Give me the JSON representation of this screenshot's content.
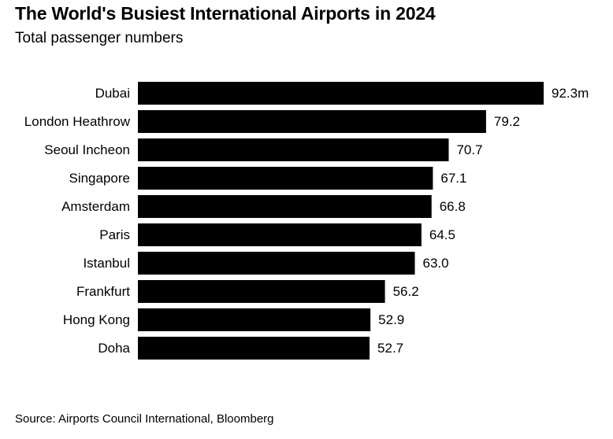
{
  "title": "The World's Busiest International Airports in 2024",
  "subtitle": "Total passenger numbers",
  "source": "Source: Airports Council International, Bloomberg",
  "colors": {
    "bar": "#000000",
    "text": "#000000",
    "background": "#ffffff"
  },
  "chart_data": {
    "type": "bar",
    "orientation": "horizontal",
    "categories": [
      "Dubai",
      "London Heathrow",
      "Seoul Incheon",
      "Singapore",
      "Amsterdam",
      "Paris",
      "Istanbul",
      "Frankfurt",
      "Hong Kong",
      "Doha"
    ],
    "values": [
      92.3,
      79.2,
      70.7,
      67.1,
      66.8,
      64.5,
      63.0,
      56.2,
      52.9,
      52.7
    ],
    "value_labels": [
      "92.3m",
      "79.2",
      "70.7",
      "67.1",
      "66.8",
      "64.5",
      "63.0",
      "56.2",
      "52.9",
      "52.7"
    ],
    "xlim": [
      0,
      92.3
    ],
    "grid": false,
    "legend": "none"
  }
}
